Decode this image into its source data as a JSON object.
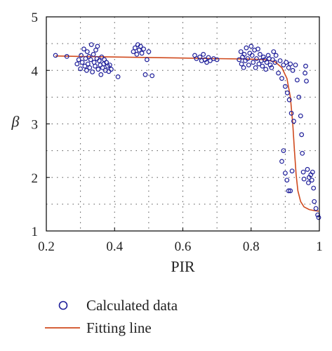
{
  "chart_data": {
    "type": "scatter",
    "xlabel": "PIR",
    "ylabel": "β",
    "xlim": [
      0.2,
      1.0
    ],
    "ylim": [
      1,
      5
    ],
    "xticks": [
      "0.2",
      "0.4",
      "0.6",
      "0.8",
      "1"
    ],
    "xtick_values": [
      0.2,
      0.4,
      0.6,
      0.8,
      1.0
    ],
    "yticks": [
      "1",
      "2",
      "3",
      "4",
      "5"
    ],
    "ytick_values": [
      1,
      2,
      3,
      4,
      5
    ],
    "grid": true,
    "legend_position": "bottom",
    "colors": {
      "scatter": "#1f1f9a",
      "fit": "#d04a1e",
      "frame": "#000000",
      "grid": "#555555"
    },
    "series": [
      {
        "name": "Calculated data",
        "kind": "scatter",
        "points": [
          [
            0.227,
            4.28
          ],
          [
            0.26,
            4.26
          ],
          [
            0.29,
            4.12
          ],
          [
            0.295,
            4.2
          ],
          [
            0.3,
            4.03
          ],
          [
            0.302,
            4.28
          ],
          [
            0.305,
            4.15
          ],
          [
            0.31,
            4.4
          ],
          [
            0.313,
            4.08
          ],
          [
            0.315,
            4.22
          ],
          [
            0.318,
            4.0
          ],
          [
            0.32,
            4.35
          ],
          [
            0.322,
            4.12
          ],
          [
            0.325,
            4.26
          ],
          [
            0.327,
            4.05
          ],
          [
            0.33,
            4.2
          ],
          [
            0.332,
            4.48
          ],
          [
            0.335,
            3.97
          ],
          [
            0.338,
            4.3
          ],
          [
            0.34,
            4.15
          ],
          [
            0.343,
            4.08
          ],
          [
            0.345,
            4.38
          ],
          [
            0.348,
            4.22
          ],
          [
            0.35,
            4.45
          ],
          [
            0.352,
            4.02
          ],
          [
            0.355,
            4.18
          ],
          [
            0.358,
            4.1
          ],
          [
            0.36,
            3.92
          ],
          [
            0.362,
            4.25
          ],
          [
            0.365,
            4.05
          ],
          [
            0.368,
            4.12
          ],
          [
            0.37,
            4.2
          ],
          [
            0.373,
            4.0
          ],
          [
            0.376,
            4.15
          ],
          [
            0.38,
            4.08
          ],
          [
            0.383,
            3.98
          ],
          [
            0.386,
            4.1
          ],
          [
            0.39,
            4.02
          ],
          [
            0.41,
            3.88
          ],
          [
            0.455,
            4.35
          ],
          [
            0.46,
            4.42
          ],
          [
            0.465,
            4.3
          ],
          [
            0.468,
            4.48
          ],
          [
            0.472,
            4.38
          ],
          [
            0.476,
            4.45
          ],
          [
            0.48,
            4.32
          ],
          [
            0.485,
            4.4
          ],
          [
            0.49,
            3.92
          ],
          [
            0.495,
            4.2
          ],
          [
            0.5,
            4.35
          ],
          [
            0.51,
            3.9
          ],
          [
            0.635,
            4.28
          ],
          [
            0.64,
            4.22
          ],
          [
            0.65,
            4.25
          ],
          [
            0.655,
            4.18
          ],
          [
            0.66,
            4.3
          ],
          [
            0.665,
            4.2
          ],
          [
            0.67,
            4.15
          ],
          [
            0.675,
            4.24
          ],
          [
            0.68,
            4.18
          ],
          [
            0.69,
            4.22
          ],
          [
            0.7,
            4.2
          ],
          [
            0.765,
            4.2
          ],
          [
            0.77,
            4.35
          ],
          [
            0.772,
            4.12
          ],
          [
            0.775,
            4.25
          ],
          [
            0.778,
            4.05
          ],
          [
            0.78,
            4.3
          ],
          [
            0.783,
            4.18
          ],
          [
            0.786,
            4.42
          ],
          [
            0.79,
            4.22
          ],
          [
            0.793,
            4.1
          ],
          [
            0.796,
            4.32
          ],
          [
            0.8,
            4.45
          ],
          [
            0.803,
            4.28
          ],
          [
            0.806,
            4.15
          ],
          [
            0.81,
            4.38
          ],
          [
            0.813,
            4.05
          ],
          [
            0.816,
            4.22
          ],
          [
            0.82,
            4.4
          ],
          [
            0.823,
            4.12
          ],
          [
            0.826,
            4.3
          ],
          [
            0.83,
            4.18
          ],
          [
            0.833,
            4.08
          ],
          [
            0.836,
            4.25
          ],
          [
            0.84,
            4.2
          ],
          [
            0.843,
            4.02
          ],
          [
            0.846,
            4.15
          ],
          [
            0.85,
            4.28
          ],
          [
            0.853,
            4.22
          ],
          [
            0.856,
            4.1
          ],
          [
            0.86,
            4.05
          ],
          [
            0.863,
            4.2
          ],
          [
            0.866,
            4.35
          ],
          [
            0.87,
            4.15
          ],
          [
            0.873,
            4.28
          ],
          [
            0.88,
            3.95
          ],
          [
            0.885,
            4.18
          ],
          [
            0.89,
            3.85
          ],
          [
            0.895,
            4.1
          ],
          [
            0.9,
            3.7
          ],
          [
            0.903,
            4.15
          ],
          [
            0.906,
            3.58
          ],
          [
            0.91,
            4.05
          ],
          [
            0.912,
            3.45
          ],
          [
            0.915,
            4.12
          ],
          [
            0.918,
            3.2
          ],
          [
            0.92,
            2.12
          ],
          [
            0.922,
            4.0
          ],
          [
            0.925,
            3.05
          ],
          [
            0.89,
            2.3
          ],
          [
            0.895,
            2.5
          ],
          [
            0.9,
            2.08
          ],
          [
            0.905,
            1.95
          ],
          [
            0.91,
            1.75
          ],
          [
            0.915,
            1.75
          ],
          [
            0.93,
            4.1
          ],
          [
            0.935,
            3.82
          ],
          [
            0.94,
            3.5
          ],
          [
            0.945,
            3.15
          ],
          [
            0.948,
            2.8
          ],
          [
            0.95,
            2.45
          ],
          [
            0.953,
            2.1
          ],
          [
            0.955,
            1.97
          ],
          [
            0.958,
            3.95
          ],
          [
            0.96,
            4.08
          ],
          [
            0.962,
            3.8
          ],
          [
            0.965,
            2.15
          ],
          [
            0.968,
            1.9
          ],
          [
            0.97,
            2.0
          ],
          [
            0.975,
            2.05
          ],
          [
            0.978,
            1.95
          ],
          [
            0.98,
            2.1
          ],
          [
            0.983,
            1.8
          ],
          [
            0.985,
            1.55
          ],
          [
            0.99,
            1.42
          ],
          [
            0.995,
            1.3
          ],
          [
            0.998,
            1.25
          ]
        ]
      },
      {
        "name": "Fitting line",
        "kind": "line",
        "points": [
          [
            0.227,
            4.27
          ],
          [
            0.3,
            4.26
          ],
          [
            0.4,
            4.25
          ],
          [
            0.5,
            4.24
          ],
          [
            0.6,
            4.23
          ],
          [
            0.7,
            4.22
          ],
          [
            0.8,
            4.21
          ],
          [
            0.84,
            4.2
          ],
          [
            0.87,
            4.16
          ],
          [
            0.89,
            4.05
          ],
          [
            0.905,
            3.85
          ],
          [
            0.915,
            3.5
          ],
          [
            0.922,
            3.0
          ],
          [
            0.927,
            2.5
          ],
          [
            0.932,
            2.05
          ],
          [
            0.937,
            1.75
          ],
          [
            0.945,
            1.55
          ],
          [
            0.955,
            1.45
          ],
          [
            0.97,
            1.4
          ],
          [
            0.985,
            1.38
          ],
          [
            0.998,
            1.37
          ]
        ]
      }
    ]
  }
}
